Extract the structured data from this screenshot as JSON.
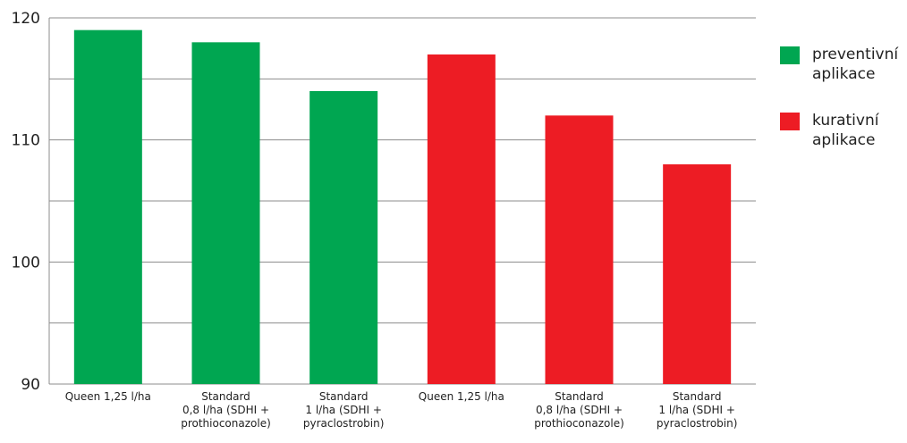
{
  "chart_data": {
    "type": "bar",
    "title": "",
    "xlabel": "",
    "ylabel": "",
    "ylim": [
      90,
      120
    ],
    "yticks": [
      90,
      100,
      110,
      120
    ],
    "grid": true,
    "categories": [
      [
        "Queen 1,25 l/ha"
      ],
      [
        "Standard",
        "0,8 l/ha (SDHI +",
        "prothioconazole)"
      ],
      [
        "Standard",
        "1 l/ha (SDHI +",
        "pyraclostrobin)"
      ],
      [
        "Queen 1,25 l/ha"
      ],
      [
        "Standard",
        "0,8 l/ha (SDHI +",
        "prothioconazole)"
      ],
      [
        "Standard",
        "1 l/ha (SDHI +",
        "pyraclostrobin)"
      ]
    ],
    "values": [
      119,
      118,
      114,
      117,
      112,
      108
    ],
    "bar_groups": [
      0,
      0,
      0,
      1,
      1,
      1
    ],
    "series": [
      {
        "name_lines": [
          "preventivní",
          "aplikace"
        ],
        "color": "#00A651"
      },
      {
        "name_lines": [
          "kurativní",
          "aplikace"
        ],
        "color": "#ED1C24"
      }
    ],
    "legend_position": "right"
  }
}
